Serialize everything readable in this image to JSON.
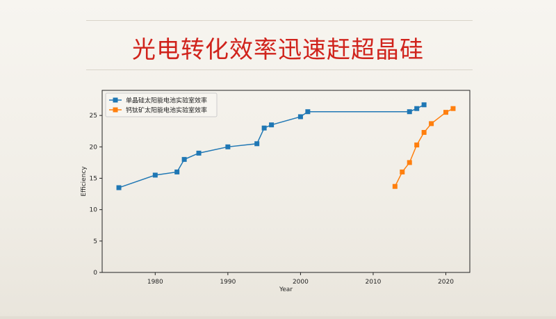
{
  "slide": {
    "title": "光电转化效率迅速赶超晶硅"
  },
  "chart_data": {
    "type": "line",
    "title": "",
    "xlabel": "Year",
    "ylabel": "Efficiency",
    "xlim": [
      1972.7,
      2023.3
    ],
    "ylim": [
      0,
      29
    ],
    "xticks": [
      1980,
      1990,
      2000,
      2010,
      2020
    ],
    "yticks": [
      0,
      5,
      10,
      15,
      20,
      25
    ],
    "grid": false,
    "legend": "top-left",
    "series": [
      {
        "name": "单晶硅太阳能电池实验室效率",
        "color": "#1f77b4",
        "marker": "square",
        "x": [
          1975,
          1980,
          1983,
          1984,
          1986,
          1990,
          1994,
          1995,
          1996,
          2000,
          2001,
          2015,
          2016,
          2017
        ],
        "y": [
          13.5,
          15.5,
          16.0,
          18.0,
          19.0,
          20.0,
          20.5,
          23.0,
          23.5,
          24.8,
          25.6,
          25.6,
          26.1,
          26.7
        ]
      },
      {
        "name": "钙钛矿太阳能电池实验室效率",
        "color": "#ff7f0e",
        "marker": "square",
        "x": [
          2013,
          2014,
          2015,
          2016,
          2017,
          2018,
          2020,
          2021
        ],
        "y": [
          13.7,
          16.0,
          17.5,
          20.3,
          22.3,
          23.7,
          25.5,
          26.1
        ]
      }
    ]
  }
}
